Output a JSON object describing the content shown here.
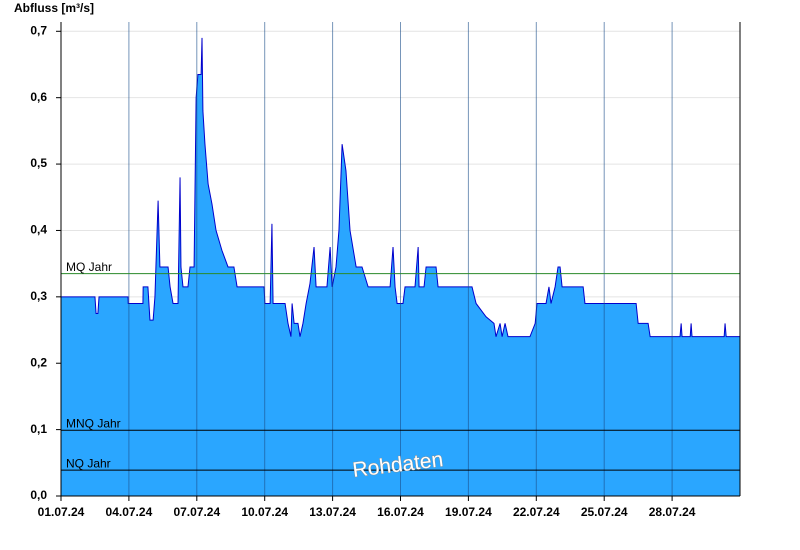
{
  "chart_data": {
    "type": "area",
    "y_axis_title": "Abfluss [m³/s]",
    "watermark": "Rohdaten",
    "color": "#2aa6ff",
    "line_color": "#0000cc",
    "grid": true,
    "xlim": [
      0,
      30
    ],
    "ylim": [
      0,
      0.714
    ],
    "yticks": [
      {
        "value": 0,
        "label": "0,0"
      },
      {
        "value": 0.1,
        "label": "0,1"
      },
      {
        "value": 0.2,
        "label": "0,2"
      },
      {
        "value": 0.3,
        "label": "0,3"
      },
      {
        "value": 0.4,
        "label": "0,4"
      },
      {
        "value": 0.5,
        "label": "0,5"
      },
      {
        "value": 0.6,
        "label": "0,6"
      },
      {
        "value": 0.7,
        "label": "0,7"
      }
    ],
    "xticks": [
      {
        "value": 0,
        "label": "01.07.24"
      },
      {
        "value": 3,
        "label": "04.07.24"
      },
      {
        "value": 6,
        "label": "07.07.24"
      },
      {
        "value": 9,
        "label": "10.07.24"
      },
      {
        "value": 12,
        "label": "13.07.24"
      },
      {
        "value": 15,
        "label": "16.07.24"
      },
      {
        "value": 18,
        "label": "19.07.24"
      },
      {
        "value": 21,
        "label": "22.07.24"
      },
      {
        "value": 24,
        "label": "25.07.24"
      },
      {
        "value": 27,
        "label": "28.07.24"
      }
    ],
    "reference_lines": [
      {
        "label": "MQ Jahr",
        "value": 0.335,
        "color": "#2a8a2a"
      },
      {
        "label": "MNQ Jahr",
        "value": 0.099,
        "color": "#000000"
      },
      {
        "label": "NQ Jahr",
        "value": 0.039,
        "color": "#000000"
      }
    ],
    "x": [
      0,
      1.5,
      1.55,
      1.63,
      1.68,
      2.96,
      2.97,
      3.62,
      3.63,
      3.84,
      3.93,
      4.07,
      4.15,
      4.29,
      4.37,
      4.73,
      4.82,
      4.95,
      5.17,
      5.26,
      5.3,
      5.39,
      5.61,
      5.7,
      5.88,
      5.97,
      6.05,
      6.19,
      6.23,
      6.27,
      6.36,
      6.5,
      6.67,
      6.85,
      7.11,
      7.38,
      7.64,
      7.78,
      8.97,
      9.01,
      9.24,
      9.32,
      9.37,
      9.9,
      10.03,
      10.16,
      10.21,
      10.3,
      10.47,
      10.56,
      10.69,
      10.83,
      11.0,
      11.18,
      11.27,
      11.75,
      11.89,
      11.98,
      12.15,
      12.28,
      12.42,
      12.59,
      12.77,
      13.04,
      13.3,
      13.57,
      14.54,
      14.67,
      14.76,
      14.85,
      15.11,
      15.2,
      15.64,
      15.78,
      15.82,
      16.04,
      16.13,
      16.57,
      16.66,
      18.16,
      18.34,
      18.78,
      19.13,
      19.22,
      19.4,
      19.49,
      19.62,
      19.75,
      20.72,
      20.95,
      21.03,
      21.43,
      21.56,
      21.65,
      21.83,
      21.96,
      22.05,
      22.14,
      23.07,
      23.15,
      25.41,
      25.5,
      25.94,
      26.03,
      27.35,
      27.4,
      27.44,
      27.8,
      27.84,
      27.88,
      29.3,
      29.34,
      29.39,
      30
    ],
    "values": [
      0.3,
      0.3,
      0.275,
      0.275,
      0.3,
      0.3,
      0.29,
      0.29,
      0.315,
      0.315,
      0.265,
      0.265,
      0.3,
      0.445,
      0.345,
      0.345,
      0.315,
      0.29,
      0.29,
      0.48,
      0.345,
      0.315,
      0.315,
      0.345,
      0.345,
      0.6,
      0.635,
      0.635,
      0.69,
      0.58,
      0.53,
      0.47,
      0.44,
      0.4,
      0.37,
      0.345,
      0.345,
      0.315,
      0.315,
      0.29,
      0.29,
      0.41,
      0.29,
      0.29,
      0.26,
      0.24,
      0.29,
      0.26,
      0.26,
      0.24,
      0.26,
      0.29,
      0.32,
      0.375,
      0.315,
      0.315,
      0.375,
      0.315,
      0.345,
      0.4,
      0.53,
      0.49,
      0.4,
      0.345,
      0.345,
      0.315,
      0.315,
      0.375,
      0.315,
      0.29,
      0.29,
      0.315,
      0.315,
      0.375,
      0.315,
      0.315,
      0.345,
      0.345,
      0.315,
      0.315,
      0.29,
      0.27,
      0.26,
      0.24,
      0.26,
      0.24,
      0.26,
      0.24,
      0.24,
      0.26,
      0.29,
      0.29,
      0.315,
      0.29,
      0.315,
      0.345,
      0.345,
      0.315,
      0.315,
      0.29,
      0.29,
      0.26,
      0.26,
      0.24,
      0.24,
      0.26,
      0.24,
      0.24,
      0.26,
      0.24,
      0.24,
      0.26,
      0.24,
      0.24
    ]
  }
}
